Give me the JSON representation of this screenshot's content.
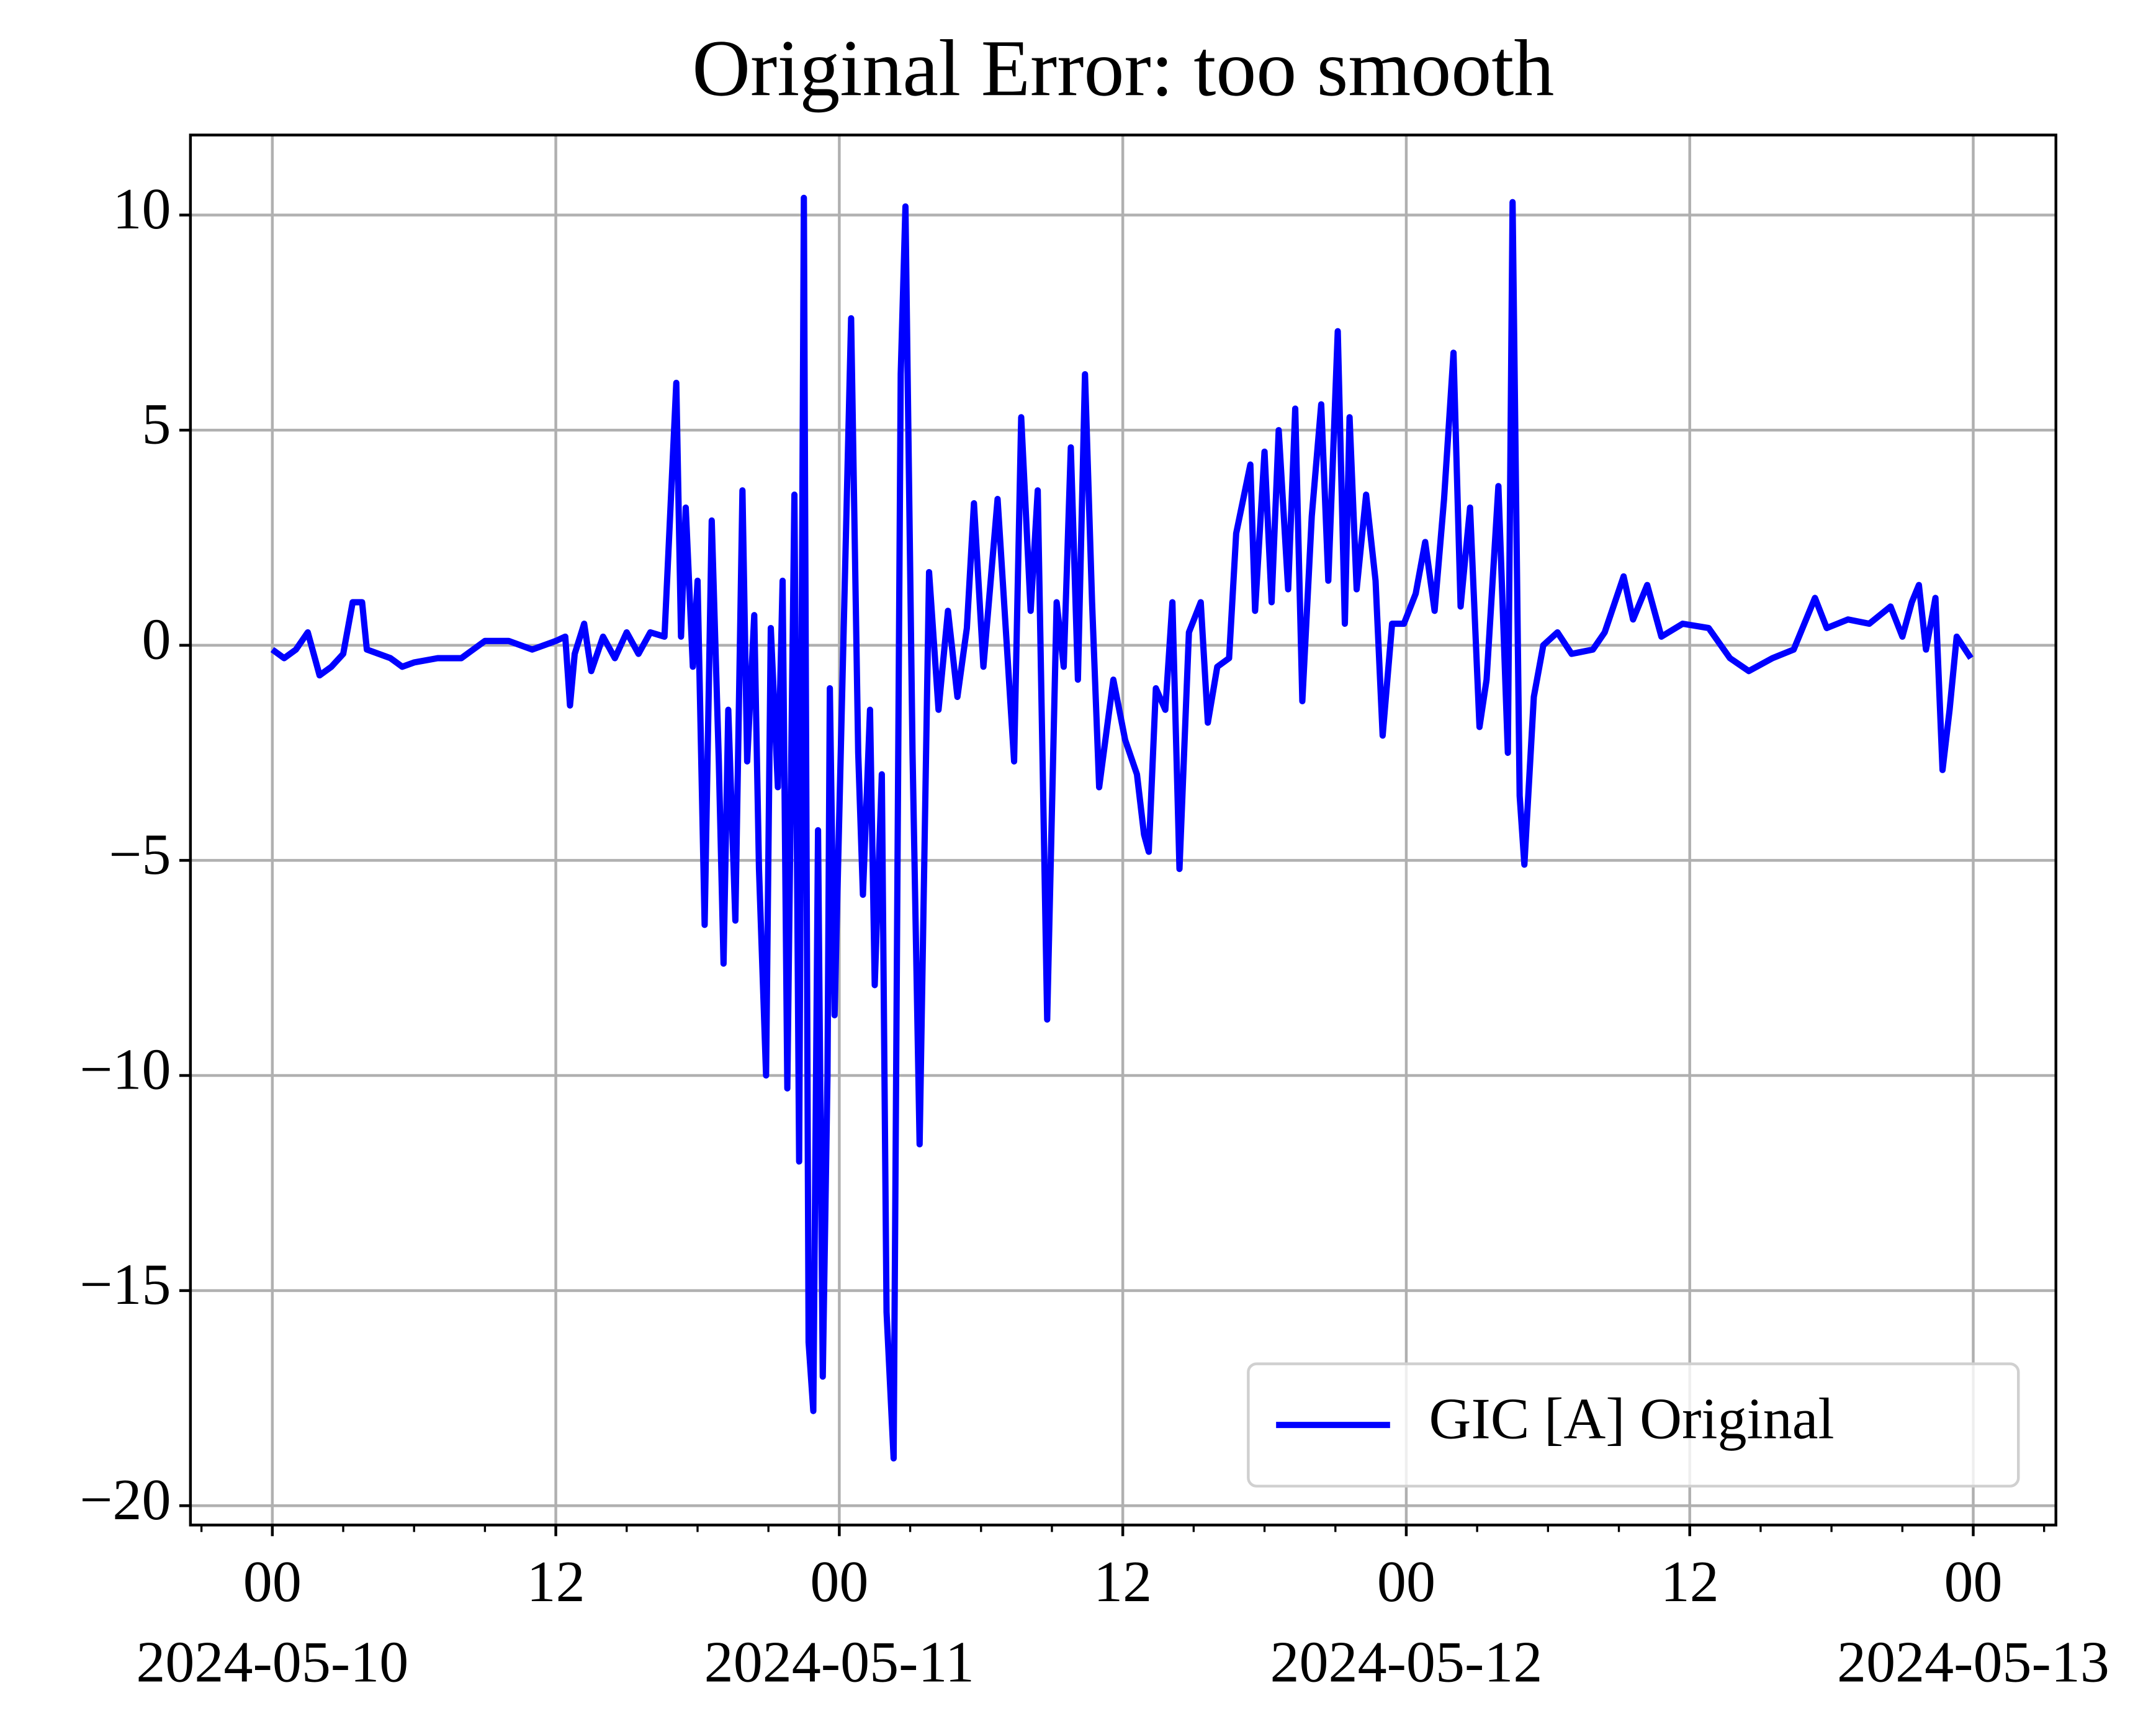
{
  "chart_data": {
    "type": "line",
    "title": "Original Error: too smooth",
    "x": [
      "2024-05-10T00:00",
      "2024-05-10T00:30",
      "2024-05-10T01:00",
      "2024-05-10T01:30",
      "2024-05-10T02:00",
      "2024-05-10T02:30",
      "2024-05-10T03:00",
      "2024-05-10T03:24",
      "2024-05-10T03:48",
      "2024-05-10T04:00",
      "2024-05-10T05:00",
      "2024-05-10T05:30",
      "2024-05-10T06:00",
      "2024-05-10T07:00",
      "2024-05-10T08:00",
      "2024-05-10T09:00",
      "2024-05-10T10:00",
      "2024-05-10T11:00",
      "2024-05-10T12:00",
      "2024-05-10T12:24",
      "2024-05-10T12:36",
      "2024-05-10T12:48",
      "2024-05-10T13:12",
      "2024-05-10T13:30",
      "2024-05-10T14:00",
      "2024-05-10T14:30",
      "2024-05-10T15:00",
      "2024-05-10T15:30",
      "2024-05-10T16:00",
      "2024-05-10T16:36",
      "2024-05-10T17:06",
      "2024-05-10T17:18",
      "2024-05-10T17:30",
      "2024-05-10T17:48",
      "2024-05-10T18:00",
      "2024-05-10T18:18",
      "2024-05-10T18:36",
      "2024-05-10T18:54",
      "2024-05-10T19:06",
      "2024-05-10T19:18",
      "2024-05-10T19:36",
      "2024-05-10T19:54",
      "2024-05-10T20:06",
      "2024-05-10T20:24",
      "2024-05-10T20:36",
      "2024-05-10T20:54",
      "2024-05-10T21:06",
      "2024-05-10T21:24",
      "2024-05-10T21:36",
      "2024-05-10T21:48",
      "2024-05-10T22:06",
      "2024-05-10T22:18",
      "2024-05-10T22:30",
      "2024-05-10T22:42",
      "2024-05-10T22:54",
      "2024-05-10T23:06",
      "2024-05-10T23:18",
      "2024-05-10T23:30",
      "2024-05-10T23:36",
      "2024-05-10T23:48",
      "2024-05-11T00:06",
      "2024-05-11T00:30",
      "2024-05-11T00:48",
      "2024-05-11T01:00",
      "2024-05-11T01:18",
      "2024-05-11T01:30",
      "2024-05-11T01:48",
      "2024-05-11T02:00",
      "2024-05-11T02:18",
      "2024-05-11T02:36",
      "2024-05-11T02:48",
      "2024-05-11T03:06",
      "2024-05-11T03:24",
      "2024-05-11T03:48",
      "2024-05-11T04:12",
      "2024-05-11T04:36",
      "2024-05-11T05:00",
      "2024-05-11T05:24",
      "2024-05-11T05:42",
      "2024-05-11T06:06",
      "2024-05-11T06:42",
      "2024-05-11T07:24",
      "2024-05-11T07:42",
      "2024-05-11T08:06",
      "2024-05-11T08:24",
      "2024-05-11T08:48",
      "2024-05-11T09:12",
      "2024-05-11T09:30",
      "2024-05-11T09:48",
      "2024-05-11T10:06",
      "2024-05-11T10:24",
      "2024-05-11T10:42",
      "2024-05-11T11:00",
      "2024-05-11T11:36",
      "2024-05-11T12:06",
      "2024-05-11T12:36",
      "2024-05-11T12:54",
      "2024-05-11T13:06",
      "2024-05-11T13:24",
      "2024-05-11T13:48",
      "2024-05-11T14:06",
      "2024-05-11T14:24",
      "2024-05-11T14:48",
      "2024-05-11T15:18",
      "2024-05-11T15:36",
      "2024-05-11T16:00",
      "2024-05-11T16:30",
      "2024-05-11T16:48",
      "2024-05-11T17:24",
      "2024-05-11T17:36",
      "2024-05-11T18:00",
      "2024-05-11T18:18",
      "2024-05-11T18:36",
      "2024-05-11T19:00",
      "2024-05-11T19:18",
      "2024-05-11T19:36",
      "2024-05-11T20:00",
      "2024-05-11T20:24",
      "2024-05-11T20:42",
      "2024-05-11T21:06",
      "2024-05-11T21:24",
      "2024-05-11T21:36",
      "2024-05-11T21:54",
      "2024-05-11T22:18",
      "2024-05-11T22:42",
      "2024-05-11T23:00",
      "2024-05-11T23:24",
      "2024-05-11T23:54",
      "2024-05-12T00:24",
      "2024-05-12T00:48",
      "2024-05-12T01:12",
      "2024-05-12T01:36",
      "2024-05-12T02:00",
      "2024-05-12T02:18",
      "2024-05-12T02:42",
      "2024-05-12T03:06",
      "2024-05-12T03:24",
      "2024-05-12T03:54",
      "2024-05-12T04:18",
      "2024-05-12T04:30",
      "2024-05-12T04:48",
      "2024-05-12T05:00",
      "2024-05-12T05:24",
      "2024-05-12T05:48",
      "2024-05-12T06:24",
      "2024-05-12T07:00",
      "2024-05-12T07:54",
      "2024-05-12T08:24",
      "2024-05-12T09:12",
      "2024-05-12T09:36",
      "2024-05-12T10:12",
      "2024-05-12T10:48",
      "2024-05-12T11:42",
      "2024-05-12T12:48",
      "2024-05-12T13:42",
      "2024-05-12T14:30",
      "2024-05-12T15:30",
      "2024-05-12T16:24",
      "2024-05-12T17:18",
      "2024-05-12T17:48",
      "2024-05-12T18:42",
      "2024-05-12T19:36",
      "2024-05-12T20:30",
      "2024-05-12T21:00",
      "2024-05-12T21:24",
      "2024-05-12T21:42",
      "2024-05-12T22:00",
      "2024-05-12T22:24",
      "2024-05-12T22:42",
      "2024-05-12T23:00",
      "2024-05-12T23:18",
      "2024-05-12T23:54"
    ],
    "series": [
      {
        "name": "GIC [A] Original",
        "color": "#0000ff",
        "values": [
          -0.1,
          -0.3,
          -0.1,
          0.3,
          -0.7,
          -0.5,
          -0.2,
          1.0,
          1.0,
          -0.1,
          -0.3,
          -0.5,
          -0.4,
          -0.3,
          -0.3,
          0.1,
          0.1,
          -0.1,
          0.1,
          0.2,
          -1.4,
          -0.2,
          0.5,
          -0.6,
          0.2,
          -0.3,
          0.3,
          -0.2,
          0.3,
          0.2,
          6.1,
          0.2,
          3.2,
          -0.5,
          1.5,
          -6.5,
          2.9,
          -2.7,
          -7.4,
          -1.5,
          -6.4,
          3.6,
          -2.7,
          0.7,
          -5.2,
          -10,
          0.4,
          -3.3,
          1.5,
          -10.3,
          3.5,
          -12,
          10.4,
          -16.2,
          -17.8,
          -4.3,
          -17,
          -10,
          -1,
          -8.6,
          -1.6,
          7.6,
          -2.5,
          -5.8,
          -1.5,
          -7.9,
          -3,
          -15.5,
          -18.9,
          6.3,
          10.2,
          -2.5,
          -11.6,
          1.7,
          -1.5,
          0.8,
          -1.2,
          0.4,
          3.3,
          -0.5,
          3.4,
          -2.7,
          5.3,
          0.8,
          3.6,
          -8.7,
          1.0,
          -0.5,
          4.6,
          -0.8,
          6.3,
          1.0,
          -3.3,
          -0.8,
          -2.2,
          -3,
          -4.4,
          -4.8,
          -1,
          -1.5,
          1.0,
          -5.2,
          0.3,
          1.0,
          -1.8,
          -0.5,
          -0.3,
          2.6,
          4.2,
          0.8,
          4.5,
          1.0,
          5.0,
          1.3,
          5.5,
          -1.3,
          3.0,
          5.6,
          1.5,
          7.3,
          0.5,
          5.3,
          1.3,
          3.5,
          1.5,
          -2.1,
          0.5,
          0.5,
          1.2,
          2.4,
          0.8,
          3.4,
          6.8,
          0.9,
          3.2,
          -1.9,
          -0.8,
          3.7,
          -2.5,
          10.3,
          -3.5,
          -5.1,
          -1.2,
          0,
          0.3,
          -0.2,
          -0.1,
          0.3,
          1.6,
          0.6,
          1.4,
          0.2,
          0.5,
          0.4,
          -0.3,
          -0.6,
          -0.3,
          -0.1,
          1.1,
          0.4,
          0.6,
          0.5,
          0.9,
          0.2,
          1.0,
          1.4,
          -0.1,
          1.1,
          -2.9,
          -1.5,
          0.2,
          -0.3
        ]
      }
    ],
    "xlim": [
      "2024-05-09T20:32",
      "2024-05-13T03:30"
    ],
    "xticks": [
      {
        "value": "2024-05-10T00:00",
        "label": [
          "00",
          "2024-05-10"
        ]
      },
      {
        "value": "2024-05-10T12:00",
        "label": [
          "12"
        ]
      },
      {
        "value": "2024-05-11T00:00",
        "label": [
          "00",
          "2024-05-11"
        ]
      },
      {
        "value": "2024-05-11T12:00",
        "label": [
          "12"
        ]
      },
      {
        "value": "2024-05-12T00:00",
        "label": [
          "00",
          "2024-05-12"
        ]
      },
      {
        "value": "2024-05-12T12:00",
        "label": [
          "12"
        ]
      },
      {
        "value": "2024-05-13T00:00",
        "label": [
          "00",
          "2024-05-13"
        ]
      }
    ],
    "xminorticks": [
      "2024-05-09T21:00",
      "2024-05-10T03:00",
      "2024-05-10T06:00",
      "2024-05-10T09:00",
      "2024-05-10T15:00",
      "2024-05-10T18:00",
      "2024-05-10T21:00",
      "2024-05-11T03:00",
      "2024-05-11T06:00",
      "2024-05-11T09:00",
      "2024-05-11T15:00",
      "2024-05-11T18:00",
      "2024-05-11T21:00",
      "2024-05-12T03:00",
      "2024-05-12T06:00",
      "2024-05-12T09:00",
      "2024-05-12T15:00",
      "2024-05-12T18:00",
      "2024-05-12T21:00",
      "2024-05-13T03:00"
    ],
    "ylim": [
      -20.45,
      11.86
    ],
    "yticks": [
      {
        "value": -20,
        "label": "−20"
      },
      {
        "value": -15,
        "label": "−15"
      },
      {
        "value": -10,
        "label": "−10"
      },
      {
        "value": -5,
        "label": "−5"
      },
      0,
      5,
      10
    ],
    "grid": true,
    "legend": "lower right"
  }
}
